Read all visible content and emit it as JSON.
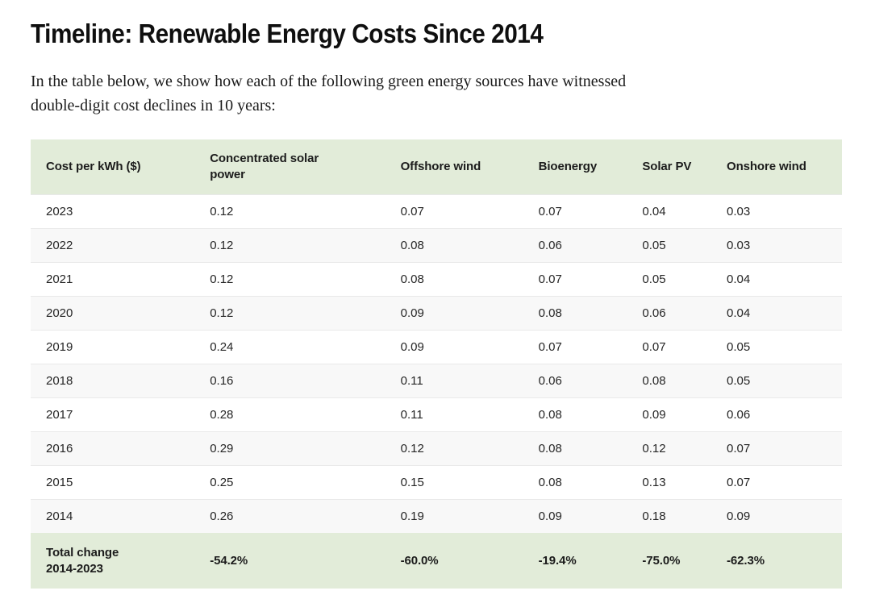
{
  "page": {
    "title": "Timeline: Renewable Energy Costs Since 2014",
    "intro_line1": "In the table below, we show how each of the following green energy sources have witnessed",
    "intro_line2": "double-digit cost declines in 10 years:"
  },
  "colors": {
    "accent_green": "#e2ecd9",
    "alt_row_gray": "#f8f8f8",
    "row_border": "#e9e9e9"
  },
  "table": {
    "columns": [
      "Cost per kWh ($)",
      "Concentrated solar power",
      "Offshore wind",
      "Bioenergy",
      "Solar PV",
      "Onshore wind"
    ],
    "rows": [
      {
        "year": "2023",
        "values": [
          "0.12",
          "0.07",
          "0.07",
          "0.04",
          "0.03"
        ]
      },
      {
        "year": "2022",
        "values": [
          "0.12",
          "0.08",
          "0.06",
          "0.05",
          "0.03"
        ]
      },
      {
        "year": "2021",
        "values": [
          "0.12",
          "0.08",
          "0.07",
          "0.05",
          "0.04"
        ]
      },
      {
        "year": "2020",
        "values": [
          "0.12",
          "0.09",
          "0.08",
          "0.06",
          "0.04"
        ]
      },
      {
        "year": "2019",
        "values": [
          "0.24",
          "0.09",
          "0.07",
          "0.07",
          "0.05"
        ]
      },
      {
        "year": "2018",
        "values": [
          "0.16",
          "0.11",
          "0.06",
          "0.08",
          "0.05"
        ]
      },
      {
        "year": "2017",
        "values": [
          "0.28",
          "0.11",
          "0.08",
          "0.09",
          "0.06"
        ]
      },
      {
        "year": "2016",
        "values": [
          "0.29",
          "0.12",
          "0.08",
          "0.12",
          "0.07"
        ]
      },
      {
        "year": "2015",
        "values": [
          "0.25",
          "0.15",
          "0.08",
          "0.13",
          "0.07"
        ]
      },
      {
        "year": "2014",
        "values": [
          "0.26",
          "0.19",
          "0.09",
          "0.18",
          "0.09"
        ]
      }
    ],
    "footer": {
      "label_line1": "Total change",
      "label_line2": "2014-2023",
      "values": [
        "-54.2%",
        "-60.0%",
        "-19.4%",
        "-75.0%",
        "-62.3%"
      ]
    }
  }
}
